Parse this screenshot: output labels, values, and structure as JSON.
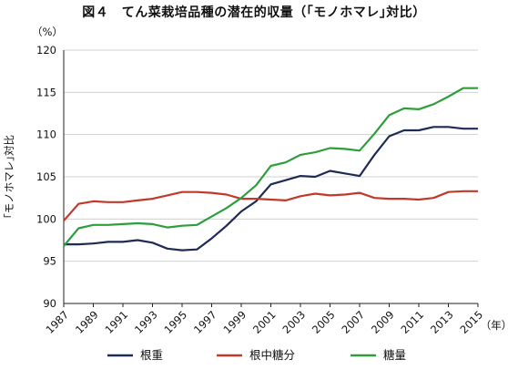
{
  "title": "図４　てん菜栽培品種の潜在的収量（｢モノホマレ｣対比）",
  "chart_data": {
    "type": "line",
    "title": "図４　てん菜栽培品種の潜在的収量（｢モノホマレ｣対比）",
    "unit_label": "（%）",
    "ylabel": "｢モノホマレ｣対比",
    "xunit_label": "（年）",
    "ylim": [
      90,
      120
    ],
    "yticks": [
      90,
      95,
      100,
      105,
      110,
      115,
      120
    ],
    "xlim": [
      1987,
      2015
    ],
    "xticks": [
      1987,
      1989,
      1991,
      1993,
      1995,
      1997,
      1999,
      2001,
      2003,
      2005,
      2007,
      2009,
      2011,
      2013,
      2015
    ],
    "grid": "horizontal",
    "legend_position": "bottom",
    "x": [
      1987,
      1988,
      1989,
      1990,
      1991,
      1992,
      1993,
      1994,
      1995,
      1996,
      1997,
      1998,
      1999,
      2000,
      2001,
      2002,
      2003,
      2004,
      2005,
      2006,
      2007,
      2008,
      2009,
      2010,
      2011,
      2012,
      2013,
      2014,
      2015
    ],
    "series": [
      {
        "name": "根重",
        "color": "#1f2a55",
        "values": [
          97.0,
          97.0,
          97.1,
          97.3,
          97.3,
          97.5,
          97.2,
          96.5,
          96.3,
          96.4,
          97.7,
          99.2,
          100.9,
          102.1,
          104.1,
          104.6,
          105.1,
          105.0,
          105.7,
          105.4,
          105.1,
          107.6,
          109.8,
          110.5,
          110.5,
          110.9,
          110.9,
          110.7,
          110.7
        ]
      },
      {
        "name": "根中糖分",
        "color": "#c0392b",
        "values": [
          99.8,
          101.8,
          102.1,
          102.0,
          102.0,
          102.2,
          102.4,
          102.8,
          103.2,
          103.2,
          103.1,
          102.9,
          102.4,
          102.4,
          102.3,
          102.2,
          102.7,
          103.0,
          102.8,
          102.9,
          103.1,
          102.5,
          102.4,
          102.4,
          102.3,
          102.5,
          103.2,
          103.3,
          103.3
        ]
      },
      {
        "name": "糖量",
        "color": "#2e9e3c",
        "values": [
          96.8,
          98.9,
          99.3,
          99.3,
          99.4,
          99.5,
          99.4,
          99.0,
          99.2,
          99.3,
          100.3,
          101.3,
          102.5,
          104.0,
          106.3,
          106.7,
          107.6,
          107.9,
          108.4,
          108.3,
          108.1,
          110.1,
          112.3,
          113.1,
          113.0,
          113.6,
          114.5,
          115.5,
          115.5
        ]
      }
    ]
  }
}
